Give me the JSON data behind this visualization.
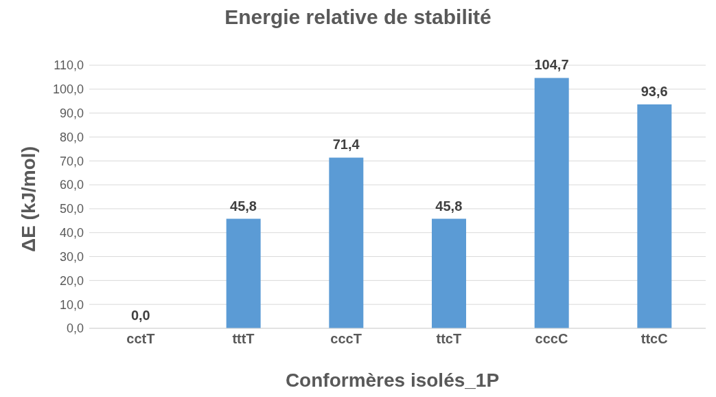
{
  "chart_data": {
    "type": "bar",
    "title": "Energie relative de stabilité",
    "xlabel": "Conformères isolés_1P",
    "ylabel": "ΔE (kJ/mol)",
    "categories": [
      "cctT",
      "tttT",
      "cccT",
      "ttcT",
      "cccC",
      "ttcC"
    ],
    "values": [
      0.0,
      45.8,
      71.4,
      45.8,
      104.7,
      93.6
    ],
    "value_labels": [
      "0,0",
      "45,8",
      "71,4",
      "45,8",
      "104,7",
      "93,6"
    ],
    "color": "#5b9bd5",
    "ylim": [
      0,
      110
    ],
    "yticks": [
      {
        "value": 0,
        "label": "0,0"
      },
      {
        "value": 10,
        "label": "10,0"
      },
      {
        "value": 20,
        "label": "20,0"
      },
      {
        "value": 30,
        "label": "30,0"
      },
      {
        "value": 40,
        "label": "40,0"
      },
      {
        "value": 50,
        "label": "50,0"
      },
      {
        "value": 60,
        "label": "60,0"
      },
      {
        "value": 70,
        "label": "70,0"
      },
      {
        "value": 80,
        "label": "80,0"
      },
      {
        "value": 90,
        "label": "90,0"
      },
      {
        "value": 100,
        "label": "100,0"
      },
      {
        "value": 110,
        "label": "110,0"
      }
    ],
    "grid": "y",
    "legend": false
  }
}
